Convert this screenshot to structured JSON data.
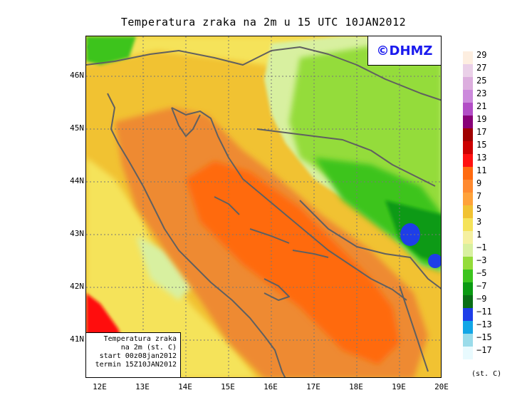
{
  "title": "Temperatura zraka na 2m u 15 UTC 10JAN2012",
  "logo": "©DHMZ",
  "infobox": {
    "lines": [
      "Temperatura zraka",
      "na 2m (st. C)",
      "start 00z08jan2012",
      "termin 15Z10JAN2012"
    ]
  },
  "axes": {
    "x_ticks": [
      "12E",
      "13E",
      "14E",
      "15E",
      "16E",
      "17E",
      "18E",
      "19E",
      "20E"
    ],
    "y_ticks": [
      "46N",
      "45N",
      "44N",
      "43N",
      "42N",
      "41N"
    ]
  },
  "legend": {
    "unit": "(st. C)",
    "labels": [
      "29",
      "27",
      "25",
      "23",
      "21",
      "19",
      "17",
      "15",
      "13",
      "11",
      "9",
      "7",
      "5",
      "3",
      "1",
      "−1",
      "−3",
      "−5",
      "−7",
      "−9",
      "−11",
      "−13",
      "−15",
      "−17"
    ],
    "colors": [
      "#fdeee0",
      "#ead0e8",
      "#dcaede",
      "#cc8adc",
      "#b24dc6",
      "#880077",
      "#a00000",
      "#cc0000",
      "#ff1010",
      "#ff6a10",
      "#ff8a30",
      "#ffa23a",
      "#f1c232",
      "#f5e35a",
      "#f5f0a0",
      "#d8f0a0",
      "#94dc3a",
      "#3cc41e",
      "#0a9a12",
      "#0a6e16",
      "#1e3ee8",
      "#12a6e6",
      "#9adcea",
      "#e8fafe"
    ]
  },
  "colors": {
    "sea_warm": "#ff6a10",
    "sea_mild": "#ee8a30",
    "coast_yellow": "#f1c232",
    "inland_cold": "#3cc41e",
    "very_cold": "#1e3ee8",
    "border_line": "#606060",
    "grid_line": "#777777"
  }
}
